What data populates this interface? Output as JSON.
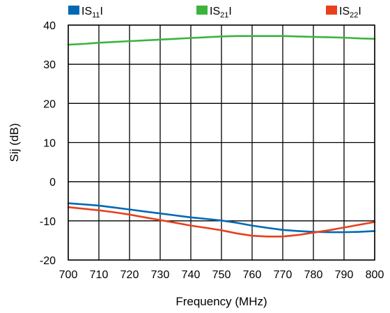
{
  "chart_data": {
    "type": "line",
    "title": "",
    "xlabel": "Frequency (MHz)",
    "ylabel": "Sij (dB)",
    "xlim": [
      700,
      800
    ],
    "ylim": [
      -20,
      40
    ],
    "xticks": [
      "700",
      "710",
      "720",
      "730",
      "740",
      "750",
      "760",
      "770",
      "780",
      "790",
      "800"
    ],
    "yticks": [
      "40",
      "30",
      "20",
      "10",
      "0",
      "-10",
      "-20"
    ],
    "grid": true,
    "legend_position": "top",
    "x": [
      700,
      705,
      710,
      715,
      720,
      725,
      730,
      735,
      740,
      745,
      750,
      755,
      760,
      765,
      770,
      775,
      780,
      785,
      790,
      795,
      800
    ],
    "series": [
      {
        "name_prefix": "IS",
        "name_sub": "11",
        "name_suffix": "I",
        "color": "#0069b4",
        "values": [
          -5.5,
          -5.8,
          -6.1,
          -6.6,
          -7.1,
          -7.6,
          -8.1,
          -8.6,
          -9.1,
          -9.5,
          -9.9,
          -10.5,
          -11.2,
          -11.8,
          -12.3,
          -12.6,
          -12.8,
          -12.9,
          -12.9,
          -12.8,
          -12.6
        ]
      },
      {
        "name_prefix": "IS",
        "name_sub": "21",
        "name_suffix": "I",
        "color": "#3cb43c",
        "values": [
          35.0,
          35.2,
          35.5,
          35.7,
          35.9,
          36.1,
          36.3,
          36.5,
          36.7,
          36.9,
          37.1,
          37.2,
          37.2,
          37.2,
          37.2,
          37.1,
          37.0,
          36.9,
          36.8,
          36.6,
          36.5
        ]
      },
      {
        "name_prefix": "IS",
        "name_sub": "22",
        "name_suffix": "I",
        "color": "#e8401e",
        "values": [
          -6.5,
          -6.9,
          -7.3,
          -7.8,
          -8.4,
          -9.1,
          -9.8,
          -10.5,
          -11.2,
          -11.8,
          -12.4,
          -13.2,
          -13.8,
          -14.0,
          -14.0,
          -13.6,
          -13.0,
          -12.4,
          -11.7,
          -11.0,
          -10.3
        ]
      }
    ]
  }
}
